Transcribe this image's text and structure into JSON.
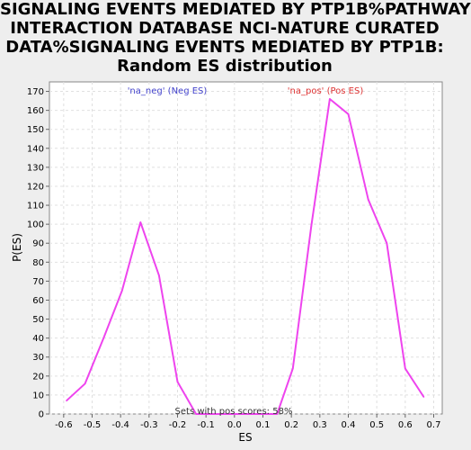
{
  "chart_data": {
    "type": "line",
    "title_lines": [
      "SIGNALING EVENTS MEDIATED BY PTP1B%PATHWAY",
      "INTERACTION DATABASE NCI-NATURE CURATED",
      "DATA%SIGNALING EVENTS MEDIATED BY PTP1B:",
      "Random ES distribution"
    ],
    "xlabel": "ES",
    "ylabel": "P(ES)",
    "xlim": [
      -0.65,
      0.73
    ],
    "ylim": [
      0,
      175
    ],
    "x_ticks": [
      "-0.6",
      "-0.5",
      "-0.4",
      "-0.3",
      "-0.2",
      "-0.1",
      "0.0",
      "0.1",
      "0.2",
      "0.3",
      "0.4",
      "0.5",
      "0.6",
      "0.7"
    ],
    "y_ticks": [
      "0",
      "10",
      "20",
      "30",
      "40",
      "50",
      "60",
      "70",
      "80",
      "90",
      "100",
      "110",
      "120",
      "130",
      "140",
      "150",
      "160",
      "170"
    ],
    "grid": true,
    "series": [
      {
        "color": "#ee44ee",
        "x": [
          -0.59,
          -0.525,
          -0.46,
          -0.395,
          -0.33,
          -0.265,
          -0.2,
          -0.135,
          0.15,
          0.205,
          0.27,
          0.335,
          0.4,
          0.47,
          0.535,
          0.6,
          0.665
        ],
        "y": [
          7,
          16,
          40,
          65,
          101,
          73,
          17,
          0,
          0,
          24,
          99,
          166,
          158,
          113,
          90,
          24,
          9
        ]
      }
    ],
    "annotations": {
      "neg_label": "'na_neg' (Neg ES)",
      "neg_color": "#4444cc",
      "pos_label": "'na_pos' (Pos ES)",
      "pos_color": "#dd3333",
      "footer": "Sets with pos scores: 58%"
    }
  }
}
